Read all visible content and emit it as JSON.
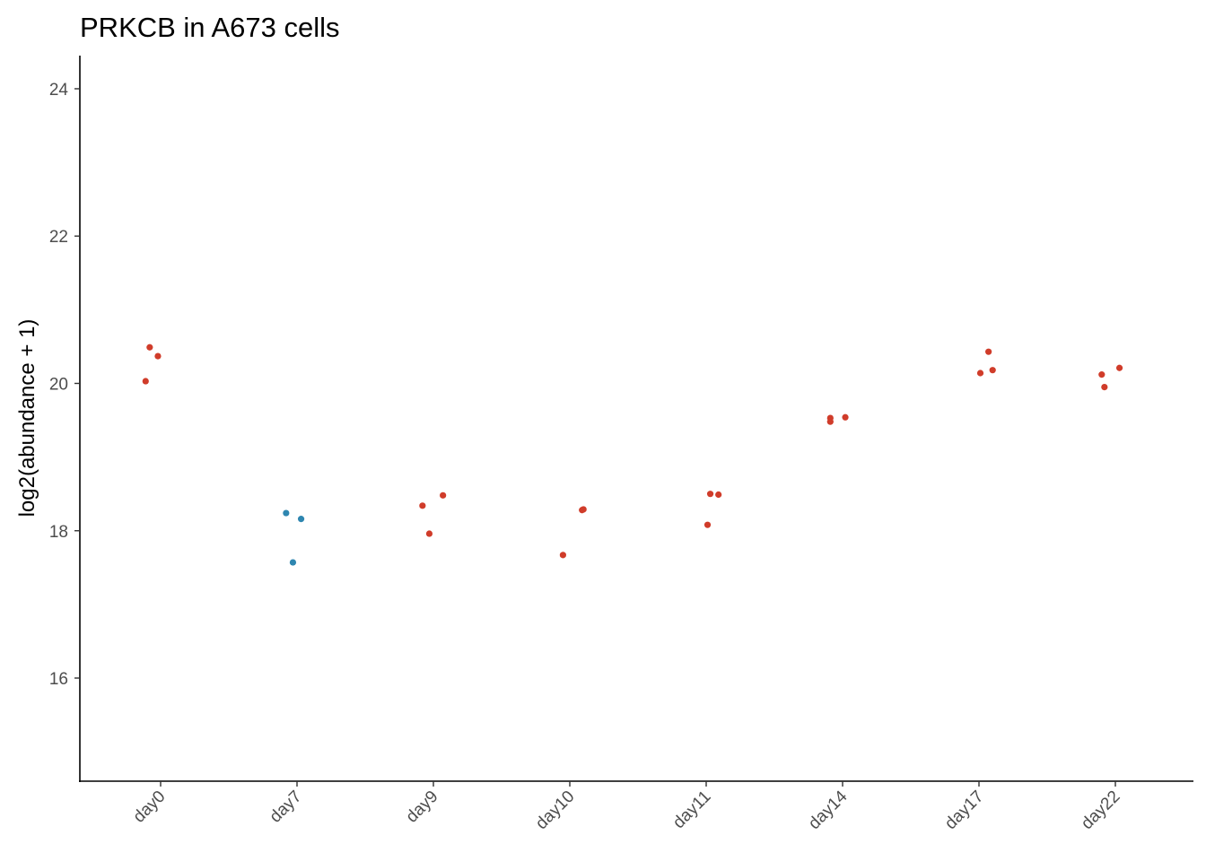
{
  "chart_data": {
    "type": "scatter",
    "title": "PRKCB in A673 cells",
    "xlabel": "",
    "ylabel": "log2(abundance + 1)",
    "categories": [
      "day0",
      "day7",
      "day9",
      "day10",
      "day11",
      "day14",
      "day17",
      "day22"
    ],
    "ylim": [
      14.6,
      24.45
    ],
    "yticks": [
      16,
      18,
      20,
      22,
      24
    ],
    "grid": false,
    "legend": "none",
    "colors": {
      "red_group": "#d03c2a",
      "blue_group": "#2e86b0"
    },
    "series": [
      {
        "color": "#d03c2a",
        "points": [
          {
            "category": "day0",
            "jitter": -0.08,
            "y": 20.49
          },
          {
            "category": "day0",
            "jitter": -0.02,
            "y": 20.37
          },
          {
            "category": "day0",
            "jitter": -0.11,
            "y": 20.03
          },
          {
            "category": "day9",
            "jitter": -0.08,
            "y": 18.34
          },
          {
            "category": "day9",
            "jitter": 0.07,
            "y": 18.48
          },
          {
            "category": "day9",
            "jitter": -0.03,
            "y": 17.96
          },
          {
            "category": "day10",
            "jitter": -0.05,
            "y": 17.67
          },
          {
            "category": "day10",
            "jitter": 0.09,
            "y": 18.28
          },
          {
            "category": "day10",
            "jitter": 0.1,
            "y": 18.29
          },
          {
            "category": "day11",
            "jitter": 0.03,
            "y": 18.5
          },
          {
            "category": "day11",
            "jitter": 0.09,
            "y": 18.49
          },
          {
            "category": "day11",
            "jitter": 0.01,
            "y": 18.08
          },
          {
            "category": "day14",
            "jitter": -0.09,
            "y": 19.53
          },
          {
            "category": "day14",
            "jitter": -0.09,
            "y": 19.48
          },
          {
            "category": "day14",
            "jitter": 0.02,
            "y": 19.54
          },
          {
            "category": "day17",
            "jitter": 0.07,
            "y": 20.43
          },
          {
            "category": "day17",
            "jitter": 0.1,
            "y": 20.18
          },
          {
            "category": "day17",
            "jitter": 0.01,
            "y": 20.14
          },
          {
            "category": "day22",
            "jitter": -0.1,
            "y": 20.12
          },
          {
            "category": "day22",
            "jitter": 0.03,
            "y": 20.21
          },
          {
            "category": "day22",
            "jitter": -0.08,
            "y": 19.95
          }
        ]
      },
      {
        "color": "#2e86b0",
        "points": [
          {
            "category": "day7",
            "jitter": -0.08,
            "y": 18.24
          },
          {
            "category": "day7",
            "jitter": 0.03,
            "y": 18.16
          },
          {
            "category": "day7",
            "jitter": -0.03,
            "y": 17.57
          }
        ]
      }
    ]
  }
}
